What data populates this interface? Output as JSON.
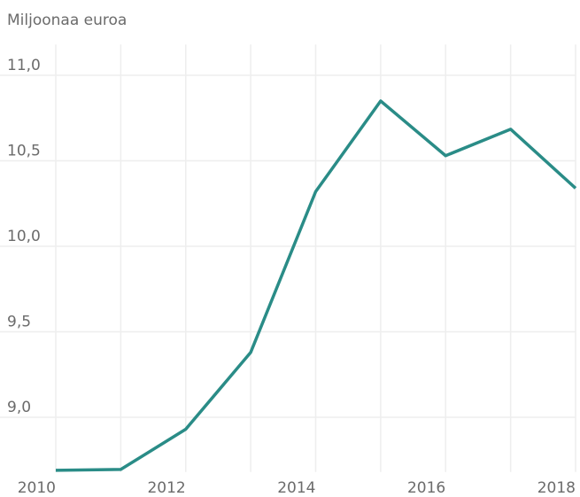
{
  "chart_data": {
    "type": "line",
    "title": "Miljoonaa euroa",
    "x": [
      2010,
      2011,
      2012,
      2013,
      2014,
      2015,
      2016,
      2017,
      2018
    ],
    "series": [
      {
        "name": "Miljoonaa euroa",
        "color": "#2a8c87",
        "values": [
          8.69,
          8.695,
          8.93,
          9.38,
          10.32,
          10.85,
          10.53,
          10.685,
          10.34
        ]
      }
    ],
    "xlim": [
      2010,
      2018
    ],
    "xticks": [
      2010,
      2012,
      2014,
      2016,
      2018
    ],
    "ylim": [
      8.68,
      11.18
    ],
    "yticks": [
      {
        "value": 9,
        "label": "9,0"
      },
      {
        "value": 9.5,
        "label": "9,5"
      },
      {
        "value": 10,
        "label": "10,0"
      },
      {
        "value": 10.5,
        "label": "10,5"
      },
      {
        "value": 11,
        "label": "11,0"
      }
    ],
    "grid": true
  }
}
